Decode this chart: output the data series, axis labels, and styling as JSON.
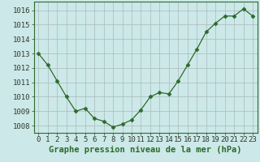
{
  "x": [
    0,
    1,
    2,
    3,
    4,
    5,
    6,
    7,
    8,
    9,
    10,
    11,
    12,
    13,
    14,
    15,
    16,
    17,
    18,
    19,
    20,
    21,
    22,
    23
  ],
  "y": [
    1013.0,
    1012.2,
    1011.1,
    1010.0,
    1009.0,
    1009.2,
    1008.5,
    1008.3,
    1007.9,
    1008.1,
    1008.4,
    1009.1,
    1010.0,
    1010.3,
    1010.2,
    1011.1,
    1012.2,
    1013.3,
    1014.5,
    1015.1,
    1015.6,
    1015.6,
    1016.1,
    1015.6
  ],
  "line_color": "#2d6a2d",
  "marker": "D",
  "marker_size": 2.5,
  "bg_color": "#cce8e8",
  "grid_color": "#aababa",
  "xlabel": "Graphe pression niveau de la mer (hPa)",
  "xlabel_fontsize": 7.5,
  "ylabel_ticks": [
    1008,
    1009,
    1010,
    1011,
    1012,
    1013,
    1014,
    1015,
    1016
  ],
  "ylim": [
    1007.5,
    1016.6
  ],
  "xlim": [
    -0.5,
    23.5
  ],
  "tick_label_fontsize": 6.5,
  "x_tick_labels": [
    "0",
    "1",
    "2",
    "3",
    "4",
    "5",
    "6",
    "7",
    "8",
    "9",
    "10",
    "11",
    "12",
    "13",
    "14",
    "15",
    "16",
    "17",
    "18",
    "19",
    "20",
    "21",
    "22",
    "23"
  ]
}
